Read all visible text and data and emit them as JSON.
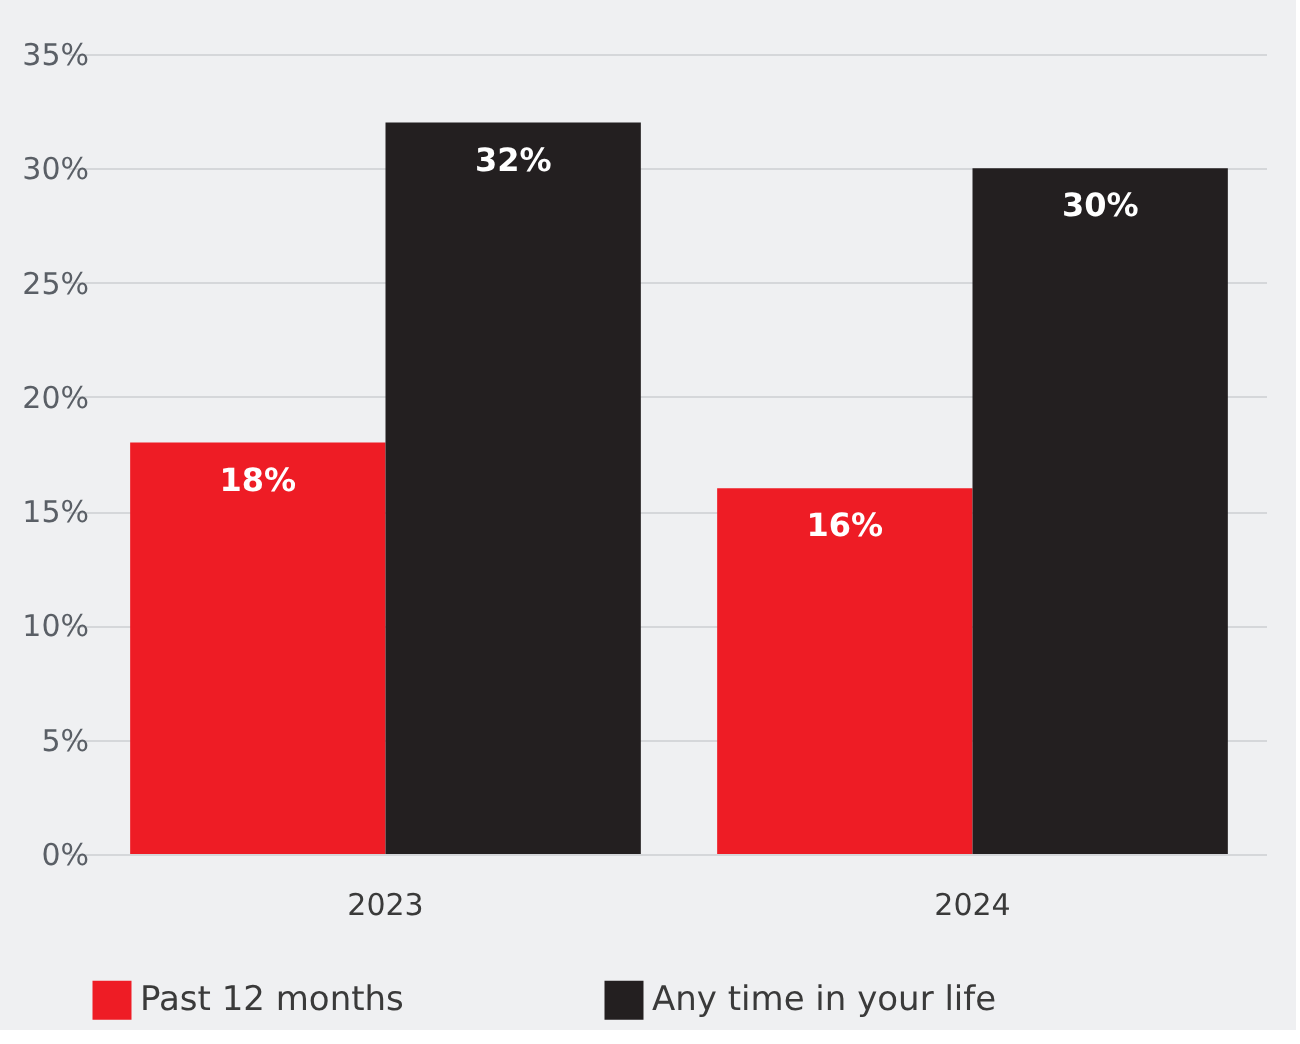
{
  "chart_data": {
    "type": "bar",
    "categories": [
      "2023",
      "2024"
    ],
    "series": [
      {
        "name": "Past 12 months",
        "color": "#ee1c25",
        "values": [
          18,
          16
        ],
        "value_labels": [
          "18%",
          "16%"
        ]
      },
      {
        "name": "Any time in your life",
        "color": "#231f20",
        "values": [
          32,
          30
        ],
        "value_labels": [
          "32%",
          "30%"
        ]
      }
    ],
    "ylim": [
      0,
      35
    ],
    "yticks": [
      {
        "value": 0,
        "label": "0%"
      },
      {
        "value": 5,
        "label": "5%"
      },
      {
        "value": 10,
        "label": "10%"
      },
      {
        "value": 15,
        "label": "15%"
      },
      {
        "value": 20,
        "label": "20%"
      },
      {
        "value": 25,
        "label": "25%"
      },
      {
        "value": 30,
        "label": "30%"
      },
      {
        "value": 35,
        "label": "35%"
      }
    ],
    "grid": "y",
    "legend": "bottom"
  }
}
